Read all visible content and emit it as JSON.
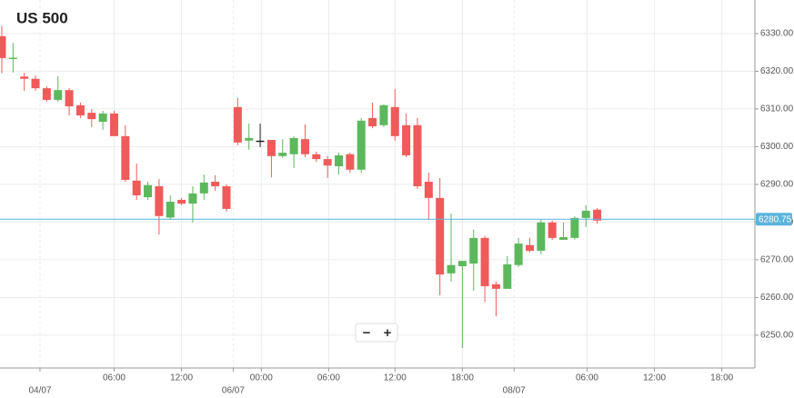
{
  "chart_data": {
    "type": "candlestick",
    "title": "US 500",
    "x": [
      0,
      1,
      2,
      3,
      4,
      5,
      6,
      7,
      8,
      9,
      10,
      11,
      12,
      13,
      14,
      15,
      16,
      17,
      18,
      19,
      20,
      21,
      22,
      23,
      24,
      25,
      26,
      27,
      28,
      29,
      30,
      31,
      32,
      33,
      34,
      35,
      36,
      37,
      38,
      39,
      40,
      41,
      42,
      43,
      44,
      45,
      46,
      47,
      48,
      49,
      50,
      51,
      52,
      53
    ],
    "open": [
      6329.3,
      6323.3,
      6318.6,
      6318,
      6315.5,
      6312.4,
      6315,
      6311,
      6309,
      6306.6,
      6308.8,
      6302.8,
      6291,
      6286.6,
      6289.5,
      6281.2,
      6285.9,
      6284.9,
      6287.6,
      6290.7,
      6289.5,
      6310.5,
      6301.6,
      6301.6,
      6301.8,
      6297.5,
      6298,
      6302,
      6298,
      6296.7,
      6294.8,
      6298,
      6293.9,
      6307.6,
      6305.7,
      6310.5,
      6305.7,
      6305.7,
      6290.7,
      6286.4,
      6266.4,
      6268.3,
      6269,
      6275.8,
      6263.5,
      6262.3,
      6268.6,
      6273.9,
      6272.4,
      6279.9,
      6275.3,
      6275.8,
      6281.1,
      6283.3
    ],
    "high": [
      6332,
      6327.5,
      6319.6,
      6318.9,
      6316,
      6318.7,
      6315.5,
      6311.7,
      6310,
      6309.5,
      6309.5,
      6305.7,
      6295.5,
      6290.7,
      6291.4,
      6287.1,
      6286.4,
      6289.5,
      6292.6,
      6292.4,
      6290,
      6312.9,
      6306.1,
      6306.1,
      6301.8,
      6302,
      6302.8,
      6305.9,
      6298.7,
      6297.5,
      6298.4,
      6298.4,
      6307.6,
      6311.7,
      6311.2,
      6315.3,
      6308.8,
      6307.6,
      6293.1,
      6291.7,
      6282.3,
      6269.7,
      6278,
      6276.3,
      6264.2,
      6271,
      6275.8,
      6275.8,
      6280.6,
      6280.4,
      6279.9,
      6281.6,
      6284.5,
      6283.7
    ],
    "low": [
      6319.5,
      6319.6,
      6314.8,
      6314.8,
      6311.9,
      6311.9,
      6308.3,
      6307.6,
      6305.2,
      6304.5,
      6302.8,
      6290.7,
      6285.9,
      6285.9,
      6276.7,
      6280.6,
      6284.5,
      6279.9,
      6285.9,
      6288.3,
      6282.8,
      6300.4,
      6299.2,
      6299.9,
      6291.9,
      6297,
      6294.3,
      6297.2,
      6296,
      6291.7,
      6292.6,
      6293.1,
      6293.1,
      6304.9,
      6305.2,
      6301.6,
      6297.2,
      6288.8,
      6280.6,
      6260.6,
      6264.2,
      6246.6,
      6261.8,
      6258.7,
      6255,
      6262.3,
      6268.1,
      6272,
      6271.4,
      6275.3,
      6275.3,
      6275.3,
      6278.7,
      6279.6
    ],
    "close": [
      6323.5,
      6323.6,
      6318,
      6315.5,
      6312.4,
      6315,
      6310.7,
      6308.3,
      6307.3,
      6308.8,
      6302.8,
      6291.2,
      6287.1,
      6289.8,
      6281.6,
      6285.4,
      6284.9,
      6287.6,
      6290.5,
      6289.5,
      6283.5,
      6301.1,
      6302.3,
      6301.6,
      6297.5,
      6298.4,
      6302.3,
      6298,
      6296.7,
      6295,
      6297.7,
      6293.9,
      6306.9,
      6305.4,
      6311,
      6302.8,
      6297.7,
      6289.5,
      6286.4,
      6266.1,
      6268.6,
      6269.7,
      6275.8,
      6263,
      6262.3,
      6268.8,
      6274.3,
      6272.4,
      6279.9,
      6275.8,
      6276,
      6281.1,
      6283,
      6280.4
    ],
    "up_color": "#5cb85c",
    "down_color": "#f05a5a",
    "xlim": [
      -0.16,
      67.04
    ],
    "xticks": [
      {
        "value": 10.0,
        "label": "06:00"
      },
      {
        "value": 16.0,
        "label": "12:00"
      },
      {
        "value": 23.1,
        "label": "00:00"
      },
      {
        "value": 29.1,
        "label": "06:00"
      },
      {
        "value": 35.0,
        "label": "12:00"
      },
      {
        "value": 41.0,
        "label": "18:00"
      },
      {
        "value": 52.1,
        "label": "06:00"
      },
      {
        "value": 58.1,
        "label": "12:00"
      },
      {
        "value": 64.1,
        "label": "18:00"
      }
    ],
    "date_ticks": [
      {
        "value": 3.4,
        "label": "04/07"
      },
      {
        "value": 20.6,
        "label": "06/07"
      },
      {
        "value": 45.6,
        "label": "08/07"
      }
    ],
    "ylim": [
      6241.3,
      6338.9
    ],
    "yticks": [
      {
        "value": 6250,
        "label": "6250.00"
      },
      {
        "value": 6260,
        "label": "6260.00"
      },
      {
        "value": 6270,
        "label": "6270.00"
      },
      {
        "value": 6280,
        "label": "6280.00"
      },
      {
        "value": 6290,
        "label": "6290.00"
      },
      {
        "value": 6300,
        "label": "6300.00"
      },
      {
        "value": 6310,
        "label": "6310.00"
      },
      {
        "value": 6320,
        "label": "6320.00"
      },
      {
        "value": 6330,
        "label": "6330.00"
      }
    ],
    "price_line": {
      "value": 6280.75,
      "color": "#5ab4dc"
    },
    "grid": true,
    "zoom_controls": {
      "minus": "−",
      "plus": "+"
    }
  }
}
